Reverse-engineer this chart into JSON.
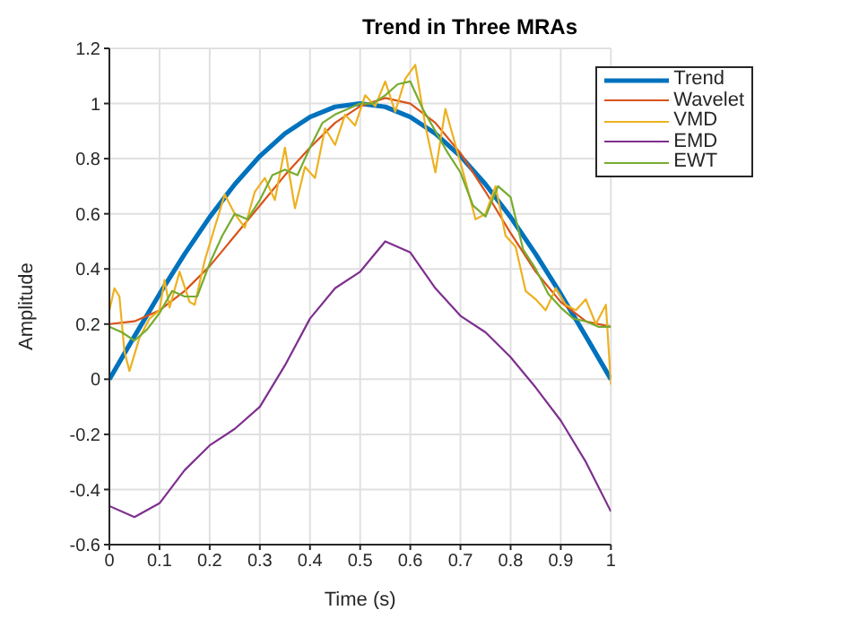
{
  "chart_data": {
    "type": "line",
    "title": "Trend in Three MRAs",
    "xlabel": "Time (s)",
    "ylabel": "Amplitude",
    "xlim": [
      0,
      1
    ],
    "xticks": [
      0,
      0.1,
      0.2,
      0.3,
      0.4,
      0.5,
      0.6,
      0.7,
      0.8,
      0.9,
      1
    ],
    "ylim": [
      -0.6,
      1.2
    ],
    "yticks": [
      -0.6,
      -0.4,
      -0.2,
      0,
      0.2,
      0.4,
      0.6,
      0.8,
      1,
      1.2
    ],
    "grid": true,
    "legend": "top right",
    "marker": "none",
    "line_style": "solid",
    "series": [
      {
        "name": "Trend",
        "color": "#0072bd",
        "x": [
          0,
          0.05,
          0.1,
          0.15,
          0.2,
          0.25,
          0.3,
          0.35,
          0.4,
          0.45,
          0.5,
          0.55,
          0.6,
          0.65,
          0.7,
          0.75,
          0.8,
          0.85,
          0.9,
          0.95,
          1
        ],
        "values": [
          0,
          0.156,
          0.309,
          0.454,
          0.588,
          0.707,
          0.809,
          0.891,
          0.951,
          0.988,
          1,
          0.988,
          0.951,
          0.891,
          0.809,
          0.707,
          0.588,
          0.454,
          0.309,
          0.156,
          0
        ]
      },
      {
        "name": "Wavelet",
        "color": "#d95319",
        "x": [
          0,
          0.05,
          0.1,
          0.15,
          0.2,
          0.25,
          0.3,
          0.35,
          0.4,
          0.45,
          0.5,
          0.55,
          0.6,
          0.65,
          0.7,
          0.75,
          0.8,
          0.85,
          0.9,
          0.95,
          1
        ],
        "values": [
          0.2,
          0.21,
          0.25,
          0.32,
          0.41,
          0.52,
          0.63,
          0.74,
          0.84,
          0.93,
          0.99,
          1.02,
          1,
          0.93,
          0.82,
          0.68,
          0.53,
          0.39,
          0.28,
          0.21,
          0.19
        ]
      },
      {
        "name": "VMD",
        "color": "#edb120",
        "x": [
          0,
          0.01,
          0.02,
          0.03,
          0.04,
          0.06,
          0.08,
          0.1,
          0.11,
          0.12,
          0.14,
          0.16,
          0.17,
          0.19,
          0.21,
          0.23,
          0.25,
          0.27,
          0.29,
          0.31,
          0.33,
          0.35,
          0.37,
          0.39,
          0.41,
          0.43,
          0.45,
          0.47,
          0.49,
          0.51,
          0.53,
          0.55,
          0.57,
          0.59,
          0.61,
          0.63,
          0.65,
          0.67,
          0.69,
          0.71,
          0.73,
          0.75,
          0.77,
          0.79,
          0.81,
          0.83,
          0.85,
          0.87,
          0.89,
          0.91,
          0.93,
          0.95,
          0.97,
          0.99,
          1
        ],
        "values": [
          0.25,
          0.33,
          0.3,
          0.1,
          0.03,
          0.15,
          0.22,
          0.25,
          0.36,
          0.26,
          0.39,
          0.28,
          0.27,
          0.43,
          0.55,
          0.67,
          0.6,
          0.55,
          0.68,
          0.73,
          0.65,
          0.84,
          0.62,
          0.77,
          0.73,
          0.91,
          0.85,
          0.96,
          0.92,
          1.03,
          0.99,
          1.08,
          0.97,
          1.09,
          1.14,
          0.92,
          0.75,
          0.98,
          0.85,
          0.72,
          0.58,
          0.6,
          0.7,
          0.52,
          0.48,
          0.32,
          0.29,
          0.25,
          0.33,
          0.27,
          0.25,
          0.29,
          0.2,
          0.27,
          -0.02
        ]
      },
      {
        "name": "EMD",
        "color": "#7e2f8e",
        "x": [
          0,
          0.05,
          0.1,
          0.15,
          0.2,
          0.25,
          0.3,
          0.35,
          0.4,
          0.45,
          0.5,
          0.55,
          0.6,
          0.65,
          0.7,
          0.75,
          0.8,
          0.85,
          0.9,
          0.95,
          1
        ],
        "values": [
          -0.46,
          -0.5,
          -0.45,
          -0.33,
          -0.24,
          -0.18,
          -0.1,
          0.05,
          0.22,
          0.33,
          0.39,
          0.5,
          0.46,
          0.33,
          0.23,
          0.17,
          0.08,
          -0.03,
          -0.15,
          -0.3,
          -0.48
        ]
      },
      {
        "name": "EWT",
        "color": "#77ac30",
        "x": [
          0,
          0.025,
          0.05,
          0.075,
          0.1,
          0.125,
          0.15,
          0.175,
          0.2,
          0.225,
          0.25,
          0.275,
          0.3,
          0.325,
          0.35,
          0.375,
          0.4,
          0.425,
          0.45,
          0.475,
          0.5,
          0.525,
          0.55,
          0.575,
          0.6,
          0.625,
          0.65,
          0.675,
          0.7,
          0.725,
          0.75,
          0.775,
          0.8,
          0.825,
          0.85,
          0.875,
          0.9,
          0.925,
          0.95,
          0.975,
          1
        ],
        "values": [
          0.19,
          0.17,
          0.14,
          0.18,
          0.24,
          0.32,
          0.3,
          0.3,
          0.42,
          0.52,
          0.6,
          0.58,
          0.65,
          0.74,
          0.76,
          0.74,
          0.84,
          0.93,
          0.96,
          0.98,
          1,
          1,
          1.03,
          1.07,
          1.08,
          0.98,
          0.9,
          0.82,
          0.75,
          0.63,
          0.59,
          0.7,
          0.66,
          0.47,
          0.4,
          0.31,
          0.26,
          0.22,
          0.21,
          0.19,
          0.19
        ]
      }
    ]
  }
}
